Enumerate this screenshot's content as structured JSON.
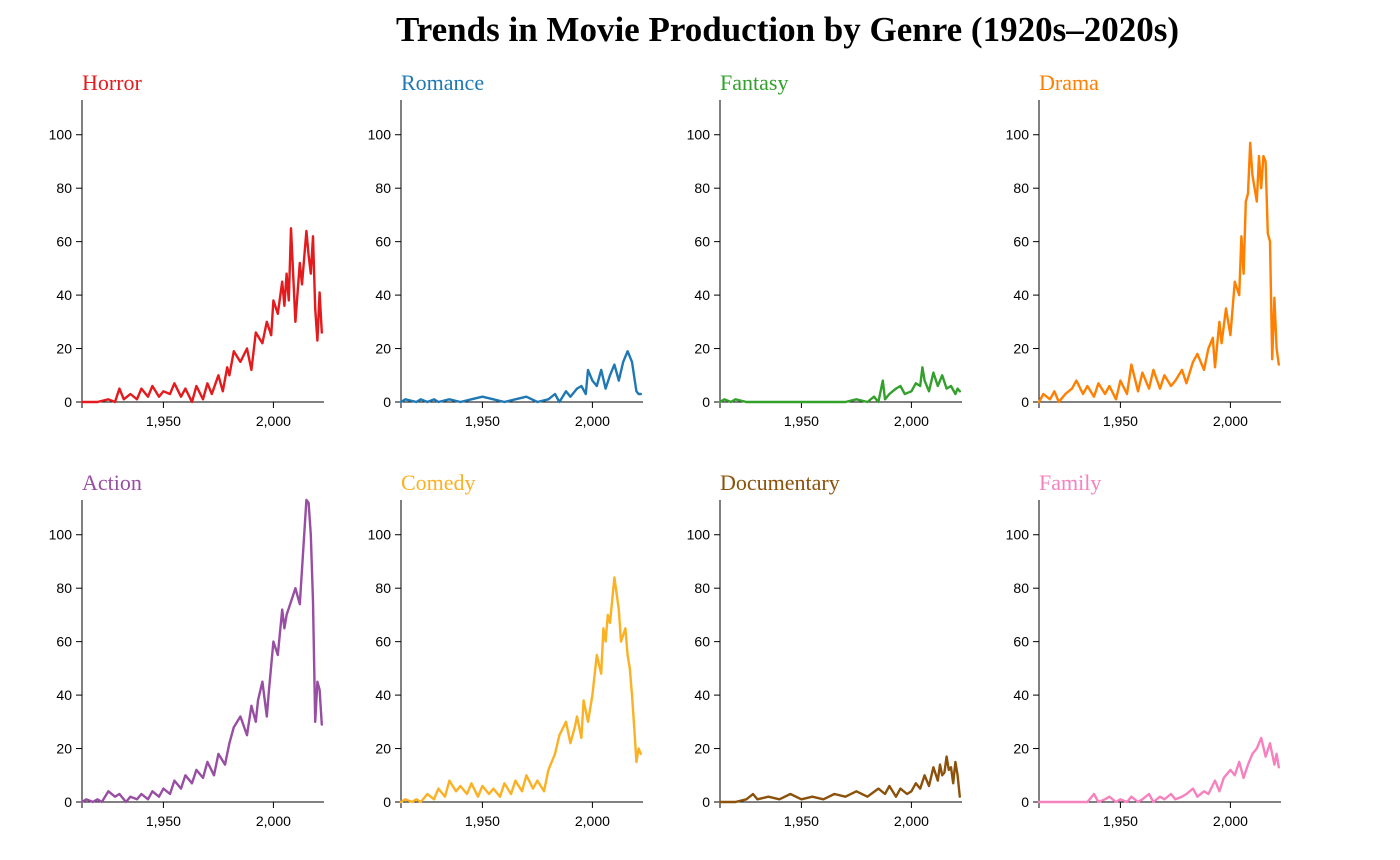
{
  "chart_data": {
    "title": "Trends in Movie Production by Genre (1920s–2020s)",
    "type": "line",
    "xlim": [
      1913,
      2023
    ],
    "ylim": [
      0,
      113
    ],
    "xticks": [
      1950,
      2000
    ],
    "xtick_labels": [
      "1,950",
      "2,000"
    ],
    "yticks": [
      0,
      20,
      40,
      60,
      80,
      100
    ],
    "ytick_labels": [
      "0",
      "20",
      "40",
      "60",
      "80",
      "100"
    ],
    "panels": [
      {
        "name": "Horror",
        "color": "#e41a1c",
        "x": [
          1913,
          1920,
          1925,
          1928,
          1930,
          1932,
          1935,
          1938,
          1940,
          1943,
          1945,
          1948,
          1950,
          1953,
          1955,
          1958,
          1960,
          1963,
          1965,
          1968,
          1970,
          1972,
          1975,
          1977,
          1979,
          1980,
          1982,
          1985,
          1988,
          1990,
          1992,
          1995,
          1997,
          1999,
          2000,
          2002,
          2004,
          2005,
          2006,
          2007,
          2008,
          2010,
          2012,
          2013,
          2015,
          2016,
          2017,
          2018,
          2019,
          2020,
          2021,
          2022
        ],
        "y": [
          0,
          0,
          1,
          0,
          5,
          1,
          3,
          1,
          5,
          2,
          6,
          2,
          4,
          3,
          7,
          2,
          5,
          0,
          6,
          1,
          7,
          3,
          10,
          4,
          13,
          10,
          19,
          15,
          20,
          12,
          26,
          22,
          30,
          25,
          38,
          33,
          45,
          36,
          48,
          38,
          65,
          30,
          52,
          44,
          64,
          55,
          48,
          62,
          35,
          23,
          41,
          26
        ]
      },
      {
        "name": "Romance",
        "color": "#1f78b4",
        "x": [
          1913,
          1915,
          1920,
          1922,
          1925,
          1928,
          1930,
          1935,
          1940,
          1945,
          1950,
          1955,
          1960,
          1965,
          1970,
          1975,
          1980,
          1983,
          1985,
          1988,
          1990,
          1993,
          1995,
          1997,
          1998,
          2000,
          2002,
          2004,
          2006,
          2008,
          2010,
          2012,
          2014,
          2016,
          2018,
          2020,
          2021,
          2022
        ],
        "y": [
          0,
          1,
          0,
          1,
          0,
          1,
          0,
          1,
          0,
          1,
          2,
          1,
          0,
          1,
          2,
          0,
          1,
          3,
          0,
          4,
          2,
          5,
          6,
          3,
          12,
          8,
          6,
          12,
          5,
          10,
          14,
          8,
          15,
          19,
          15,
          4,
          3,
          3
        ]
      },
      {
        "name": "Fantasy",
        "color": "#33a02c",
        "x": [
          1913,
          1915,
          1918,
          1920,
          1925,
          1930,
          1935,
          1940,
          1950,
          1960,
          1970,
          1975,
          1980,
          1983,
          1985,
          1987,
          1988,
          1990,
          1993,
          1995,
          1997,
          2000,
          2002,
          2004,
          2005,
          2006,
          2008,
          2010,
          2012,
          2014,
          2016,
          2018,
          2020,
          2021,
          2022
        ],
        "y": [
          0,
          1,
          0,
          1,
          0,
          0,
          0,
          0,
          0,
          0,
          0,
          1,
          0,
          2,
          0,
          8,
          1,
          3,
          5,
          6,
          3,
          4,
          7,
          6,
          13,
          8,
          4,
          11,
          6,
          10,
          5,
          6,
          3,
          5,
          4
        ]
      },
      {
        "name": "Drama",
        "color": "#ff7f00",
        "x": [
          1913,
          1915,
          1918,
          1920,
          1922,
          1925,
          1928,
          1930,
          1933,
          1935,
          1938,
          1940,
          1943,
          1945,
          1948,
          1950,
          1953,
          1955,
          1958,
          1960,
          1963,
          1965,
          1968,
          1970,
          1973,
          1975,
          1978,
          1980,
          1983,
          1985,
          1988,
          1990,
          1992,
          1993,
          1995,
          1996,
          1998,
          2000,
          2002,
          2004,
          2005,
          2006,
          2007,
          2008,
          2009,
          2010,
          2012,
          2013,
          2014,
          2015,
          2016,
          2017,
          2018,
          2019,
          2020,
          2021,
          2022
        ],
        "y": [
          0,
          3,
          1,
          4,
          0,
          3,
          5,
          8,
          3,
          6,
          2,
          7,
          3,
          6,
          1,
          8,
          3,
          14,
          4,
          11,
          5,
          12,
          5,
          10,
          6,
          8,
          12,
          7,
          15,
          18,
          12,
          20,
          24,
          13,
          30,
          22,
          35,
          25,
          45,
          40,
          62,
          48,
          75,
          78,
          97,
          85,
          75,
          92,
          80,
          92,
          90,
          63,
          60,
          16,
          39,
          20,
          14
        ]
      },
      {
        "name": "Action",
        "color": "#984ea3",
        "x": [
          1913,
          1915,
          1918,
          1920,
          1922,
          1925,
          1928,
          1930,
          1933,
          1935,
          1938,
          1940,
          1943,
          1945,
          1948,
          1950,
          1953,
          1955,
          1958,
          1960,
          1963,
          1965,
          1968,
          1970,
          1973,
          1975,
          1978,
          1980,
          1982,
          1985,
          1988,
          1990,
          1992,
          1993,
          1995,
          1997,
          1998,
          2000,
          2002,
          2004,
          2005,
          2006,
          2008,
          2010,
          2012,
          2015,
          2016,
          2017,
          2018,
          2019,
          2020,
          2021,
          2022
        ],
        "y": [
          0,
          1,
          0,
          1,
          0,
          4,
          2,
          3,
          0,
          2,
          1,
          3,
          1,
          4,
          2,
          5,
          3,
          8,
          5,
          10,
          7,
          12,
          9,
          15,
          10,
          18,
          14,
          22,
          28,
          32,
          25,
          36,
          30,
          38,
          45,
          32,
          42,
          60,
          55,
          72,
          65,
          70,
          75,
          80,
          74,
          113,
          112,
          100,
          75,
          30,
          45,
          42,
          29
        ]
      },
      {
        "name": "Comedy",
        "color": "#fbb123",
        "x": [
          1913,
          1915,
          1918,
          1920,
          1922,
          1925,
          1928,
          1930,
          1933,
          1935,
          1938,
          1940,
          1943,
          1945,
          1948,
          1950,
          1953,
          1955,
          1958,
          1960,
          1963,
          1965,
          1968,
          1970,
          1973,
          1975,
          1978,
          1980,
          1983,
          1985,
          1988,
          1990,
          1992,
          1993,
          1995,
          1996,
          1998,
          2000,
          2002,
          2004,
          2005,
          2006,
          2007,
          2008,
          2010,
          2012,
          2013,
          2015,
          2016,
          2017,
          2018,
          2019,
          2020,
          2021,
          2022
        ],
        "y": [
          0,
          1,
          0,
          1,
          0,
          3,
          1,
          5,
          2,
          8,
          4,
          6,
          3,
          7,
          2,
          6,
          3,
          5,
          2,
          7,
          3,
          8,
          4,
          10,
          5,
          8,
          4,
          12,
          18,
          25,
          30,
          22,
          28,
          32,
          24,
          38,
          30,
          40,
          55,
          48,
          65,
          60,
          70,
          67,
          84,
          72,
          60,
          65,
          55,
          50,
          40,
          28,
          15,
          20,
          18
        ]
      },
      {
        "name": "Documentary",
        "color": "#8c510a",
        "x": [
          1913,
          1915,
          1920,
          1925,
          1928,
          1930,
          1935,
          1940,
          1945,
          1950,
          1955,
          1960,
          1965,
          1970,
          1975,
          1980,
          1985,
          1988,
          1990,
          1993,
          1995,
          1998,
          2000,
          2002,
          2004,
          2006,
          2008,
          2010,
          2012,
          2013,
          2014,
          2015,
          2016,
          2017,
          2018,
          2019,
          2020,
          2021,
          2022
        ],
        "y": [
          0,
          0,
          0,
          1,
          3,
          1,
          2,
          1,
          3,
          1,
          2,
          1,
          3,
          2,
          4,
          2,
          5,
          3,
          6,
          2,
          5,
          3,
          4,
          7,
          5,
          10,
          6,
          13,
          8,
          14,
          10,
          11,
          17,
          12,
          13,
          7,
          15,
          10,
          2
        ]
      },
      {
        "name": "Family",
        "color": "#f781bf",
        "x": [
          1913,
          1915,
          1920,
          1925,
          1930,
          1935,
          1938,
          1940,
          1943,
          1945,
          1948,
          1950,
          1953,
          1955,
          1958,
          1960,
          1963,
          1965,
          1968,
          1970,
          1973,
          1975,
          1978,
          1980,
          1983,
          1985,
          1988,
          1990,
          1993,
          1995,
          1997,
          2000,
          2002,
          2004,
          2006,
          2008,
          2010,
          2012,
          2014,
          2016,
          2018,
          2020,
          2021,
          2022
        ],
        "y": [
          0,
          0,
          0,
          0,
          0,
          0,
          3,
          0,
          1,
          2,
          0,
          1,
          0,
          2,
          0,
          1,
          3,
          0,
          2,
          1,
          3,
          1,
          2,
          3,
          5,
          2,
          4,
          3,
          8,
          4,
          9,
          12,
          10,
          15,
          9,
          14,
          18,
          20,
          24,
          17,
          22,
          14,
          18,
          13
        ]
      }
    ]
  }
}
